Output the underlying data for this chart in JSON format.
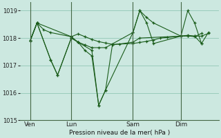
{
  "xlabel": "Pression niveau de la mer( hPa )",
  "background_color": "#cce8e0",
  "grid_color": "#99ccbb",
  "line_color": "#1a5c1a",
  "vline_color": "#446644",
  "ylim": [
    1015.0,
    1019.3
  ],
  "yticks": [
    1015,
    1016,
    1017,
    1018,
    1019
  ],
  "xtick_labels": [
    "Ven",
    "Lun",
    "Sam",
    "Dim"
  ],
  "xtick_positions": [
    2,
    14,
    32,
    46
  ],
  "vline_positions": [
    2,
    14,
    32,
    46
  ],
  "series": [
    {
      "x": [
        2,
        4,
        6,
        8,
        14,
        16,
        18,
        20,
        22,
        24,
        26,
        28,
        32,
        34,
        36,
        38,
        40,
        42,
        46,
        48,
        50,
        52,
        54
      ],
      "y": [
        1017.9,
        1018.55,
        1018.3,
        1018.2,
        1018.05,
        1018.15,
        1018.05,
        1017.95,
        1017.87,
        1017.82,
        1017.77,
        1017.78,
        1017.8,
        1017.84,
        1017.88,
        1017.93,
        1018.0,
        1018.02,
        1018.07,
        1018.08,
        1018.07,
        1018.07,
        1018.17
      ]
    },
    {
      "x": [
        2,
        4,
        14,
        16,
        18,
        20,
        22,
        24,
        26,
        32,
        34,
        46,
        48,
        50,
        52
      ],
      "y": [
        1017.9,
        1018.55,
        1018.05,
        1017.85,
        1017.55,
        1017.35,
        1015.55,
        1016.1,
        1017.75,
        1017.85,
        1018.0,
        1018.07,
        1018.08,
        1018.05,
        1018.17
      ]
    },
    {
      "x": [
        2,
        4,
        8,
        10,
        14,
        16,
        20,
        22,
        24,
        32,
        34,
        36,
        38,
        46,
        48,
        50,
        52
      ],
      "y": [
        1017.9,
        1018.55,
        1017.2,
        1016.65,
        1018.0,
        1017.85,
        1017.55,
        1015.55,
        1016.1,
        1018.2,
        1019.0,
        1018.75,
        1018.55,
        1018.07,
        1019.0,
        1018.55,
        1017.8
      ]
    },
    {
      "x": [
        2,
        4,
        8,
        10,
        14,
        16,
        18,
        20,
        22,
        24,
        32,
        34,
        36,
        38,
        46,
        48,
        50,
        52,
        54
      ],
      "y": [
        1017.9,
        1018.55,
        1017.2,
        1016.65,
        1018.0,
        1017.85,
        1017.75,
        1017.65,
        1017.65,
        1017.65,
        1018.2,
        1019.0,
        1018.55,
        1017.8,
        1018.07,
        1018.1,
        1018.07,
        1017.8,
        1018.2
      ]
    }
  ]
}
